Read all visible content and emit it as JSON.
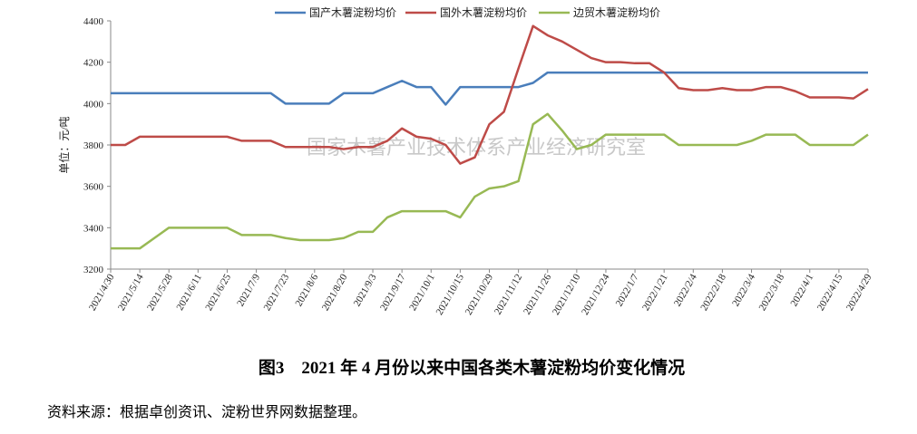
{
  "chart_data": {
    "type": "line",
    "title": "图3　2021 年 4 月份以来中国各类木薯淀粉均价变化情况",
    "source": "资料来源：根据卓创资讯、淀粉世界网数据整理。",
    "watermark": "国家木薯产业技术体系产业经济研究室",
    "ylabel": "单位：元/吨",
    "categories": [
      "2021/4/30",
      null,
      "2021/5/14",
      null,
      "2021/5/28",
      null,
      "2021/6/11",
      null,
      "2021/6/25",
      null,
      "2021/7/9",
      null,
      "2021/7/23",
      null,
      "2021/8/6",
      null,
      "2021/8/20",
      null,
      "2021/9/3",
      null,
      "2021/9/17",
      null,
      "2021/10/1",
      null,
      "2021/10/15",
      null,
      "2021/10/29",
      null,
      "2021/11/12",
      null,
      "2021/11/26",
      null,
      "2021/12/10",
      null,
      "2021/12/24",
      null,
      "2022/1/7",
      null,
      "2022/1/21",
      null,
      "2022/2/4",
      null,
      "2022/2/18",
      null,
      "2022/3/4",
      null,
      "2022/3/18",
      null,
      "2022/4/1",
      null,
      "2022/4/15",
      null,
      "2022/4/29"
    ],
    "series": [
      {
        "name": "国产木薯淀粉均价",
        "color": "#4a7ebb",
        "values": [
          4050,
          4050,
          4050,
          4050,
          4050,
          4050,
          4050,
          4050,
          4050,
          4050,
          4050,
          4050,
          4000,
          4000,
          4000,
          4000,
          4050,
          4050,
          4050,
          4080,
          4110,
          4080,
          4080,
          3995,
          4080,
          4080,
          4080,
          4080,
          4080,
          4100,
          4150,
          4150,
          4150,
          4150,
          4150,
          4150,
          4150,
          4150,
          4150,
          4150,
          4150,
          4150,
          4150,
          4150,
          4150,
          4150,
          4150,
          4150,
          4150,
          4150,
          4150,
          4150,
          4150
        ]
      },
      {
        "name": "国外木薯淀粉均价",
        "color": "#be4b48",
        "values": [
          3800,
          3800,
          3840,
          3840,
          3840,
          3840,
          3840,
          3840,
          3840,
          3820,
          3820,
          3820,
          3790,
          3790,
          3790,
          3790,
          3780,
          3790,
          3790,
          3820,
          3880,
          3840,
          3830,
          3800,
          3710,
          3740,
          3900,
          3960,
          4170,
          4375,
          4330,
          4300,
          4260,
          4220,
          4200,
          4200,
          4195,
          4195,
          4150,
          4075,
          4065,
          4065,
          4075,
          4065,
          4065,
          4080,
          4080,
          4060,
          4030,
          4030,
          4030,
          4025,
          4070
        ]
      },
      {
        "name": "边贸木薯淀粉均价",
        "color": "#98b954",
        "values": [
          3300,
          3300,
          3300,
          3350,
          3400,
          3400,
          3400,
          3400,
          3400,
          3365,
          3365,
          3365,
          3350,
          3340,
          3340,
          3340,
          3350,
          3380,
          3380,
          3450,
          3480,
          3480,
          3480,
          3480,
          3450,
          3550,
          3590,
          3600,
          3625,
          3900,
          3950,
          3870,
          3780,
          3800,
          3850,
          3850,
          3850,
          3850,
          3850,
          3800,
          3800,
          3800,
          3800,
          3800,
          3820,
          3850,
          3850,
          3850,
          3800,
          3800,
          3800,
          3800,
          3850
        ]
      }
    ],
    "ylim": [
      3200,
      4400
    ],
    "yticks": [
      3200,
      3400,
      3600,
      3800,
      4000,
      4200,
      4400
    ],
    "legend": "top"
  }
}
